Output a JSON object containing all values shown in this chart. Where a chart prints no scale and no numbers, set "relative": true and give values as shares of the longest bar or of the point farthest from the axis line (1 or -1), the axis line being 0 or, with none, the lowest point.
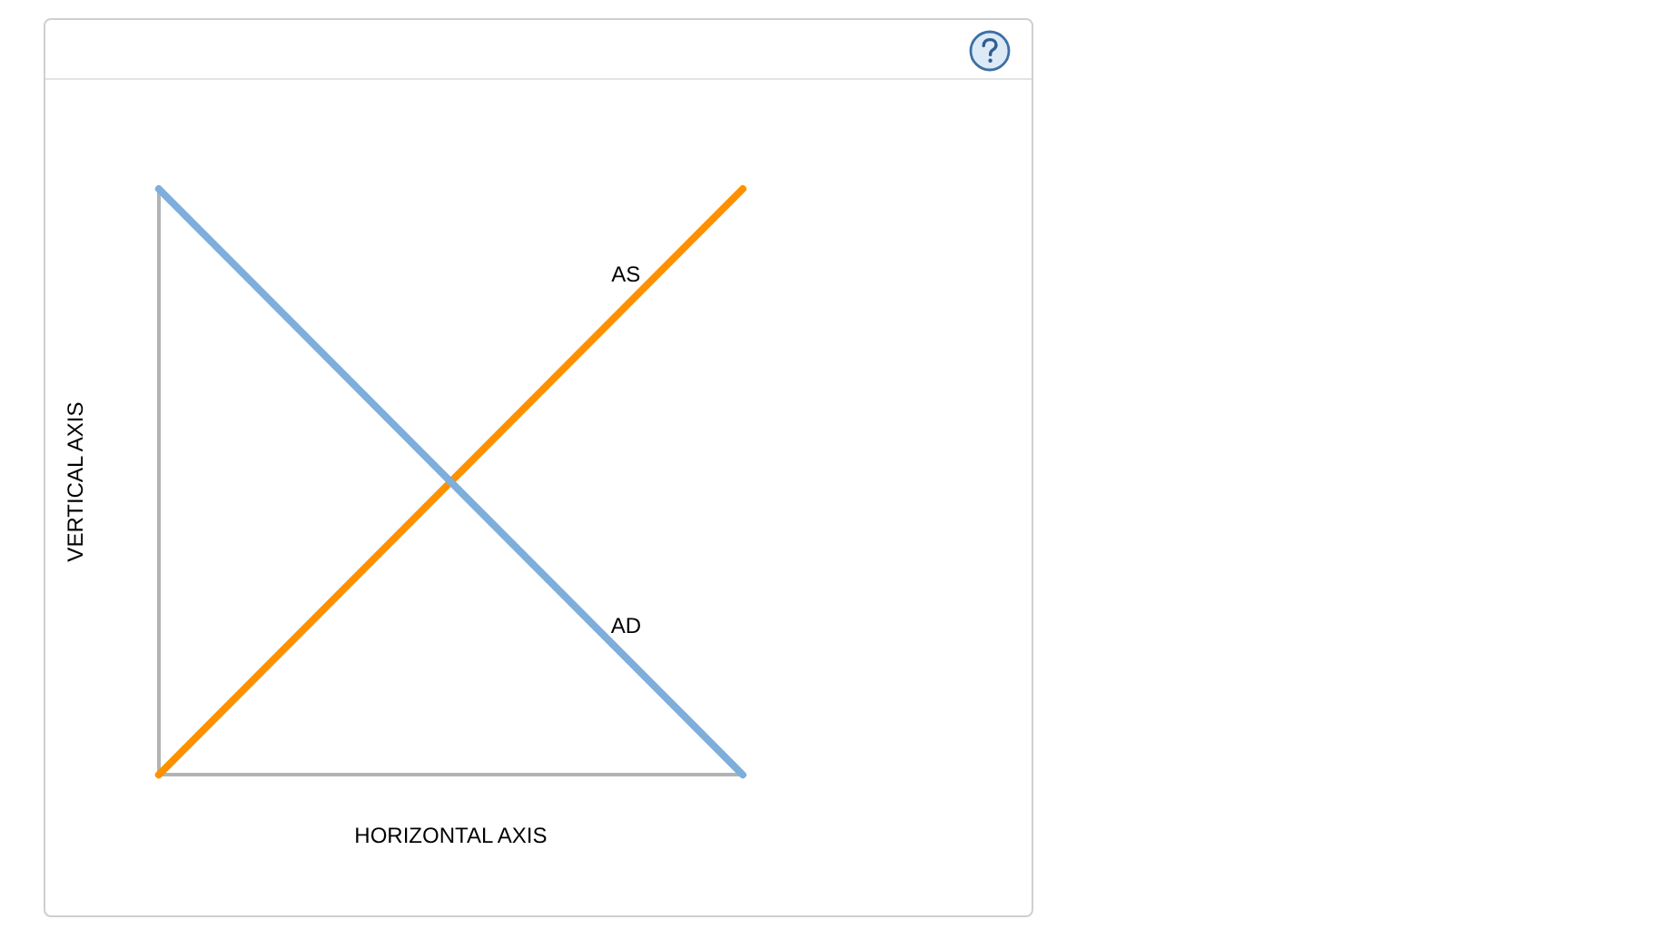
{
  "chart_data": {
    "type": "line",
    "relative": true,
    "xlabel": "HORIZONTAL AXIS",
    "ylabel": "VERTICAL AXIS",
    "categories": [
      null,
      null
    ],
    "series": [
      {
        "name": "AD",
        "color": "#7eaedb",
        "values": [
          1,
          0
        ]
      },
      {
        "name": "AS",
        "color": "#ff9000",
        "values": [
          0,
          1
        ]
      }
    ],
    "legend": false,
    "grid": false,
    "marker": "none"
  }
}
